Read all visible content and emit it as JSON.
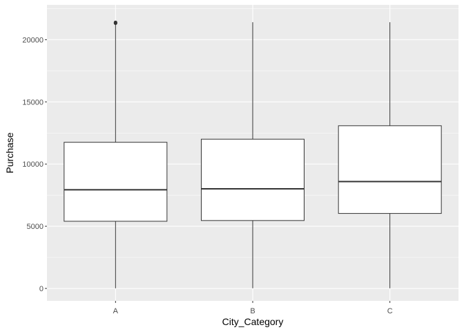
{
  "chart_data": {
    "type": "boxplot",
    "xlabel": "City_Category",
    "ylabel": "Purchase",
    "categories": [
      "A",
      "B",
      "C"
    ],
    "boxes": [
      {
        "category": "A",
        "whisker_low": 12,
        "q1": 5400,
        "median": 7930,
        "q3": 11750,
        "whisker_high": 21300,
        "outliers": [
          21390,
          21350,
          21320
        ]
      },
      {
        "category": "B",
        "whisker_low": 12,
        "q1": 5460,
        "median": 8010,
        "q3": 12000,
        "whisker_high": 21400,
        "outliers": []
      },
      {
        "category": "C",
        "whisker_low": 12,
        "q1": 6030,
        "median": 8590,
        "q3": 13080,
        "whisker_high": 21400,
        "outliers": []
      }
    ],
    "ylim": [
      -1000,
      22800
    ],
    "yticks": [
      0,
      5000,
      10000,
      15000,
      20000
    ],
    "ytick_labels": [
      "0",
      "5000",
      "10000",
      "15000",
      "20000"
    ],
    "grid": true,
    "colors": {
      "panel": "#ebebeb",
      "grid": "#ffffff",
      "box_fill": "#ffffff",
      "box_line": "#333333"
    }
  }
}
